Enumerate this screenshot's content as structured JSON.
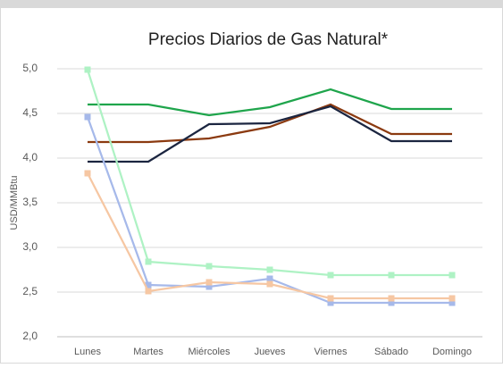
{
  "chart_data": {
    "type": "line",
    "title": "Precios Diarios de Gas Natural*",
    "y_label": "USD/MMBtu",
    "categories": [
      "Lunes",
      "Martes",
      "Miércoles",
      "Jueves",
      "Viernes",
      "Sábado",
      "Domingo"
    ],
    "series": [
      {
        "color": "#1fa54c",
        "marker": false,
        "values": [
          4.6,
          4.6,
          4.48,
          4.57,
          4.77,
          4.55,
          4.55
        ]
      },
      {
        "color": "#8b3a10",
        "marker": false,
        "values": [
          4.18,
          4.18,
          4.22,
          4.35,
          4.6,
          4.27,
          4.27
        ]
      },
      {
        "color": "#1b2540",
        "marker": false,
        "values": [
          3.96,
          3.96,
          4.38,
          4.39,
          4.58,
          4.19,
          4.19
        ]
      },
      {
        "color": "#aef2c4",
        "marker": true,
        "values": [
          4.99,
          2.84,
          2.79,
          2.75,
          2.69,
          2.69,
          2.69
        ]
      },
      {
        "color": "#a6b9ea",
        "marker": true,
        "values": [
          4.46,
          2.58,
          2.56,
          2.65,
          2.38,
          2.38,
          2.38
        ]
      },
      {
        "color": "#f6c7a3",
        "marker": true,
        "values": [
          3.83,
          2.51,
          2.61,
          2.59,
          2.43,
          2.43,
          2.43
        ]
      }
    ],
    "ylim": [
      2,
      5
    ],
    "yticks": [
      {
        "value": 2,
        "label": "2,0"
      },
      {
        "value": 2.5,
        "label": "2,5"
      },
      {
        "value": 3,
        "label": "3,0"
      },
      {
        "value": 3.5,
        "label": "3,5"
      },
      {
        "value": 4,
        "label": "4,0"
      },
      {
        "value": 4.5,
        "label": "4,5"
      },
      {
        "value": 5,
        "label": "5,0"
      }
    ],
    "grid": true
  }
}
